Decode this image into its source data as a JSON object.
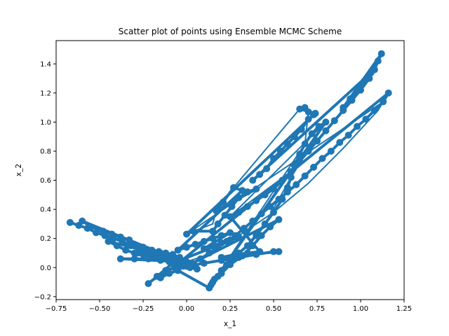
{
  "chart_data": {
    "type": "scatter",
    "title": "Scatter plot of points using Ensemble MCMC Scheme",
    "xlabel": "x_1",
    "ylabel": "x_2",
    "xlim": [
      -0.75,
      1.25
    ],
    "ylim": [
      -0.22,
      1.56
    ],
    "xticks": [
      -0.75,
      -0.5,
      -0.25,
      0.0,
      0.25,
      0.5,
      0.75,
      1.0,
      1.25
    ],
    "xtick_labels": [
      "−0.75",
      "−0.50",
      "−0.25",
      "0.00",
      "0.25",
      "0.50",
      "0.75",
      "1.00",
      "1.25"
    ],
    "yticks": [
      -0.2,
      0.0,
      0.2,
      0.4,
      0.6,
      0.8,
      1.0,
      1.2,
      1.4
    ],
    "ytick_labels": [
      "−0.2",
      "0.0",
      "0.2",
      "0.4",
      "0.6",
      "0.8",
      "1.0",
      "1.2",
      "1.4"
    ],
    "grid": false,
    "color": "#1f77b4",
    "marker": "circle",
    "connected": true,
    "series": [
      {
        "points": [
          [
            -0.67,
            0.31
          ],
          [
            -0.62,
            0.29
          ],
          [
            -0.57,
            0.27
          ],
          [
            -0.52,
            0.24
          ],
          [
            -0.47,
            0.22
          ],
          [
            -0.42,
            0.2
          ],
          [
            -0.37,
            0.18
          ],
          [
            -0.32,
            0.15
          ],
          [
            -0.27,
            0.13
          ],
          [
            -0.22,
            0.11
          ],
          [
            -0.17,
            0.09
          ],
          [
            -0.12,
            0.06
          ],
          [
            -0.07,
            0.04
          ],
          [
            -0.02,
            0.03
          ],
          [
            0.02,
            0.02
          ],
          [
            -0.6,
            0.32
          ],
          [
            -0.55,
            0.28
          ],
          [
            -0.48,
            0.25
          ],
          [
            -0.43,
            0.23
          ],
          [
            -0.38,
            0.21
          ],
          [
            -0.33,
            0.19
          ],
          [
            -0.3,
            0.16
          ],
          [
            -0.25,
            0.14
          ],
          [
            -0.2,
            0.12
          ],
          [
            -0.15,
            0.1
          ],
          [
            -0.1,
            0.08
          ],
          [
            -0.05,
            0.06
          ],
          [
            -0.45,
            0.18
          ],
          [
            -0.4,
            0.15
          ],
          [
            -0.35,
            0.12
          ],
          [
            -0.3,
            0.1
          ],
          [
            -0.25,
            0.09
          ],
          [
            -0.2,
            0.08
          ],
          [
            -0.15,
            0.07
          ],
          [
            -0.1,
            0.06
          ],
          [
            -0.05,
            0.05
          ],
          [
            0.0,
            0.04
          ],
          [
            -0.38,
            0.06
          ],
          [
            -0.3,
            0.06
          ],
          [
            -0.22,
            0.06
          ],
          [
            -0.15,
            0.05
          ],
          [
            -0.1,
            0.04
          ],
          [
            -0.05,
            0.03
          ],
          [
            0.0,
            0.01
          ],
          [
            0.05,
            0.01
          ],
          [
            -0.28,
            0.1
          ],
          [
            -0.22,
            0.12
          ],
          [
            -0.16,
            0.11
          ],
          [
            -0.12,
            0.1
          ],
          [
            -0.08,
            0.09
          ],
          [
            -0.04,
            0.07
          ],
          [
            -0.22,
            -0.11
          ],
          [
            -0.17,
            -0.06
          ],
          [
            -0.12,
            -0.02
          ],
          [
            -0.07,
            0.0
          ],
          [
            -0.02,
            0.01
          ],
          [
            0.03,
            0.03
          ],
          [
            0.08,
            0.06
          ],
          [
            0.13,
            0.1
          ],
          [
            0.18,
            0.14
          ],
          [
            0.23,
            0.18
          ],
          [
            0.28,
            0.22
          ],
          [
            0.33,
            0.27
          ],
          [
            0.38,
            0.32
          ],
          [
            0.43,
            0.37
          ],
          [
            0.48,
            0.42
          ],
          [
            0.53,
            0.47
          ],
          [
            0.58,
            0.52
          ],
          [
            0.63,
            0.57
          ],
          [
            0.68,
            0.63
          ],
          [
            0.73,
            0.69
          ],
          [
            0.78,
            0.75
          ],
          [
            0.83,
            0.8
          ],
          [
            0.88,
            0.86
          ],
          [
            0.93,
            0.91
          ],
          [
            0.98,
            0.97
          ],
          [
            1.03,
            1.02
          ],
          [
            1.08,
            1.08
          ],
          [
            1.13,
            1.14
          ],
          [
            1.16,
            1.2
          ],
          [
            -0.15,
            -0.07
          ],
          [
            -0.1,
            -0.04
          ],
          [
            -0.05,
            -0.02
          ],
          [
            0.13,
            -0.14
          ],
          [
            0.15,
            -0.1
          ],
          [
            0.18,
            -0.06
          ],
          [
            0.2,
            -0.02
          ],
          [
            0.23,
            0.02
          ],
          [
            0.26,
            0.06
          ],
          [
            0.3,
            0.1
          ],
          [
            0.35,
            0.15
          ],
          [
            0.4,
            0.22
          ],
          [
            0.45,
            0.3
          ],
          [
            0.5,
            0.38
          ],
          [
            0.55,
            0.47
          ],
          [
            0.58,
            0.55
          ],
          [
            0.6,
            0.62
          ],
          [
            0.62,
            0.7
          ],
          [
            0.65,
            0.78
          ],
          [
            0.68,
            0.85
          ],
          [
            0.72,
            0.92
          ],
          [
            0.76,
            0.97
          ],
          [
            0.8,
            1.0
          ],
          [
            0.14,
            -0.12
          ],
          [
            0.16,
            -0.08
          ],
          [
            0.2,
            -0.04
          ],
          [
            0.25,
            0.02
          ],
          [
            0.32,
            0.08
          ],
          [
            0.38,
            0.15
          ],
          [
            0.43,
            0.22
          ],
          [
            0.48,
            0.28
          ],
          [
            0.53,
            0.33
          ],
          [
            0.0,
            0.01
          ],
          [
            0.1,
            0.03
          ],
          [
            0.2,
            0.05
          ],
          [
            0.3,
            0.07
          ],
          [
            0.4,
            0.09
          ],
          [
            0.5,
            0.11
          ],
          [
            0.53,
            0.11
          ],
          [
            0.2,
            0.07
          ],
          [
            0.28,
            0.09
          ],
          [
            0.35,
            0.1
          ],
          [
            0.42,
            0.11
          ],
          [
            0.25,
            0.35
          ],
          [
            0.3,
            0.38
          ],
          [
            0.35,
            0.42
          ],
          [
            0.4,
            0.46
          ],
          [
            0.45,
            0.5
          ],
          [
            0.5,
            0.54
          ],
          [
            0.55,
            0.6
          ],
          [
            0.6,
            0.66
          ],
          [
            0.65,
            0.73
          ],
          [
            0.7,
            0.8
          ],
          [
            0.75,
            0.87
          ],
          [
            0.8,
            0.94
          ],
          [
            0.85,
            1.01
          ],
          [
            0.9,
            1.08
          ],
          [
            0.95,
            1.15
          ],
          [
            1.0,
            1.22
          ],
          [
            1.05,
            1.3
          ],
          [
            1.08,
            1.36
          ],
          [
            1.1,
            1.42
          ],
          [
            1.12,
            1.47
          ],
          [
            0.9,
            1.1
          ],
          [
            0.94,
            1.16
          ],
          [
            0.98,
            1.22
          ],
          [
            1.02,
            1.28
          ],
          [
            1.06,
            1.34
          ],
          [
            0.38,
            0.6
          ],
          [
            0.42,
            0.64
          ],
          [
            0.46,
            0.68
          ],
          [
            0.5,
            0.75
          ],
          [
            0.54,
            0.8
          ],
          [
            0.58,
            0.85
          ],
          [
            0.62,
            0.9
          ],
          [
            0.66,
            0.95
          ],
          [
            0.7,
            1.02
          ],
          [
            0.74,
            1.06
          ],
          [
            0.65,
            1.09
          ],
          [
            0.68,
            1.1
          ],
          [
            0.7,
            1.07
          ],
          [
            0.73,
            1.05
          ],
          [
            0.0,
            0.23
          ],
          [
            0.04,
            0.25
          ],
          [
            0.15,
            0.25
          ],
          [
            0.18,
            0.3
          ],
          [
            0.22,
            0.36
          ],
          [
            0.26,
            0.42
          ],
          [
            0.3,
            0.48
          ],
          [
            0.35,
            0.52
          ],
          [
            0.4,
            0.54
          ],
          [
            0.17,
            0.39
          ],
          [
            0.21,
            0.45
          ],
          [
            0.27,
            0.55
          ],
          [
            0.32,
            0.53
          ],
          [
            -0.05,
            0.12
          ],
          [
            0.0,
            0.14
          ],
          [
            0.05,
            0.16
          ],
          [
            0.1,
            0.18
          ],
          [
            0.15,
            0.2
          ],
          [
            0.2,
            0.22
          ],
          [
            0.25,
            0.24
          ],
          [
            0.1,
            0.13
          ],
          [
            0.15,
            0.15
          ],
          [
            0.2,
            0.17
          ],
          [
            0.25,
            0.19
          ],
          [
            0.3,
            0.21
          ],
          [
            -0.08,
            0.03
          ],
          [
            -0.03,
            0.02
          ],
          [
            0.02,
            0.0
          ],
          [
            0.06,
            -0.01
          ]
        ],
        "path": [
          [
            -0.22,
            -0.11
          ],
          [
            -0.05,
            0.02
          ],
          [
            0.1,
            0.08
          ],
          [
            0.3,
            0.22
          ],
          [
            0.5,
            0.38
          ],
          [
            0.7,
            0.58
          ],
          [
            0.9,
            0.82
          ],
          [
            1.1,
            1.08
          ],
          [
            1.13,
            1.14
          ],
          [
            0.0,
            0.23
          ],
          [
            0.04,
            0.25
          ],
          [
            0.15,
            0.3
          ],
          [
            0.17,
            0.39
          ],
          [
            0.27,
            0.55
          ],
          [
            0.65,
            1.09
          ],
          [
            0.7,
            1.07
          ],
          [
            0.68,
            0.85
          ],
          [
            0.13,
            -0.14
          ],
          [
            0.25,
            0.02
          ],
          [
            0.45,
            0.3
          ],
          [
            0.6,
            0.62
          ],
          [
            0.8,
            1.0
          ],
          [
            0.25,
            0.35
          ],
          [
            0.6,
            0.66
          ],
          [
            1.0,
            1.22
          ],
          [
            1.12,
            1.47
          ]
        ]
      }
    ]
  }
}
